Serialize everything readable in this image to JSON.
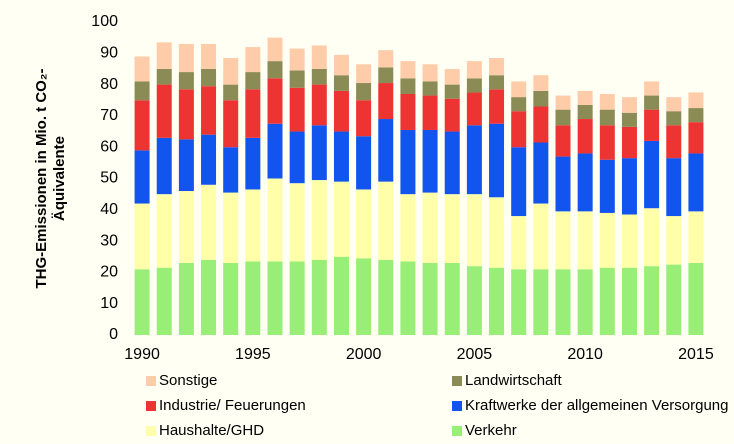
{
  "chart_data": {
    "type": "stacked_bar",
    "y_label": [
      "THG-Emissionen in Mio. t CO₂-",
      "Äquivalente"
    ],
    "categories": [
      "1990",
      null,
      null,
      null,
      null,
      "1995",
      null,
      null,
      null,
      null,
      "2000",
      null,
      null,
      null,
      null,
      "2005",
      null,
      null,
      null,
      null,
      "2010",
      null,
      null,
      null,
      null,
      "2015"
    ],
    "series": [
      {
        "name": "Verkehr",
        "color": "#99ee77",
        "values": [
          21,
          21.5,
          23,
          24,
          23,
          23.5,
          23.5,
          23.5,
          24,
          25,
          24.5,
          24,
          23.5,
          23,
          23,
          22,
          21.5,
          21,
          21,
          21,
          21,
          21.5,
          21.5,
          22,
          22.5,
          23
        ]
      },
      {
        "name": "Haushalte/GHD",
        "color": "#ffffaa",
        "values": [
          21,
          23.5,
          23,
          24,
          22.5,
          23,
          26.5,
          25,
          25.5,
          24,
          22,
          25,
          21.5,
          22.5,
          22,
          23,
          22.5,
          17,
          21,
          18.5,
          18.5,
          17.5,
          17,
          18.5,
          15.5,
          16.5
        ]
      },
      {
        "name": "Kraftwerke der allgemeinen Versorgung",
        "color": "#1155ee",
        "values": [
          17,
          18,
          16.5,
          16,
          14.5,
          16.5,
          17.5,
          16.5,
          17.5,
          16,
          17,
          20,
          20.5,
          20,
          20,
          22,
          23.5,
          22,
          19.5,
          17.5,
          18.5,
          17,
          18,
          21.5,
          18.5,
          18.5
        ]
      },
      {
        "name": "Industrie/ Feuerungen",
        "color": "#ee3333",
        "values": [
          16,
          17,
          16,
          15.5,
          15,
          15.5,
          14.5,
          14,
          13,
          13,
          11.5,
          11.5,
          11.5,
          11,
          10.5,
          10.5,
          11,
          11.5,
          11.5,
          10,
          11,
          11,
          10,
          10,
          10.5,
          10
        ]
      },
      {
        "name": "Landwirtschaft",
        "color": "#8b8b55",
        "values": [
          6,
          5,
          5.5,
          5.5,
          5,
          5.5,
          5.5,
          5.5,
          5,
          5,
          5.5,
          5,
          5,
          4.5,
          4.5,
          4.5,
          4.5,
          4.5,
          5,
          5,
          4.5,
          5,
          4.5,
          4.5,
          4.5,
          4.5
        ]
      },
      {
        "name": "Sonstige",
        "color": "#ffccaa",
        "values": [
          8,
          8.5,
          9,
          8,
          8.5,
          8,
          7.5,
          7,
          7.5,
          6.5,
          6,
          5.5,
          5.5,
          5.5,
          5,
          5.5,
          5.5,
          5,
          5,
          4.5,
          4.5,
          5,
          5,
          4.5,
          4.5,
          5
        ]
      }
    ],
    "ylim": [
      0,
      100
    ],
    "yticks": [
      0,
      10,
      20,
      30,
      40,
      50,
      60,
      70,
      80,
      90,
      100
    ]
  }
}
